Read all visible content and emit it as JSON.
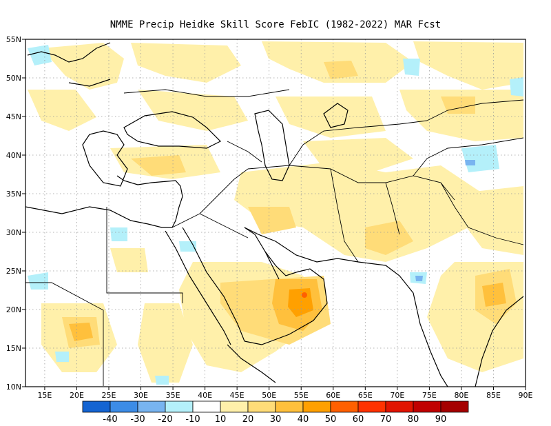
{
  "title": "NMME Precip Heidke Skill Score FebIC (1982-2022) MAR Fcst",
  "x_ticks": [
    "15E",
    "20E",
    "25E",
    "30E",
    "35E",
    "40E",
    "45E",
    "50E",
    "55E",
    "60E",
    "65E",
    "70E",
    "75E",
    "80E",
    "85E",
    "90E"
  ],
  "y_ticks": [
    "55N",
    "50N",
    "45N",
    "40N",
    "35N",
    "30N",
    "25N",
    "20N",
    "15N",
    "10N"
  ],
  "colorbar": {
    "colors": [
      "#1464d2",
      "#3c8ce6",
      "#78b4f0",
      "#b4f0fa",
      "#ffffff",
      "#fff0aa",
      "#ffdc78",
      "#ffc03c",
      "#ffa000",
      "#ff6000",
      "#ff3200",
      "#e11400",
      "#c00000",
      "#a50000"
    ],
    "labels": [
      "-40",
      "-30",
      "-20",
      "-10",
      "10",
      "20",
      "30",
      "40",
      "50",
      "60",
      "70",
      "80",
      "90"
    ]
  },
  "colors": {
    "coast": "#000000",
    "grid": "#9a9a9a"
  }
}
